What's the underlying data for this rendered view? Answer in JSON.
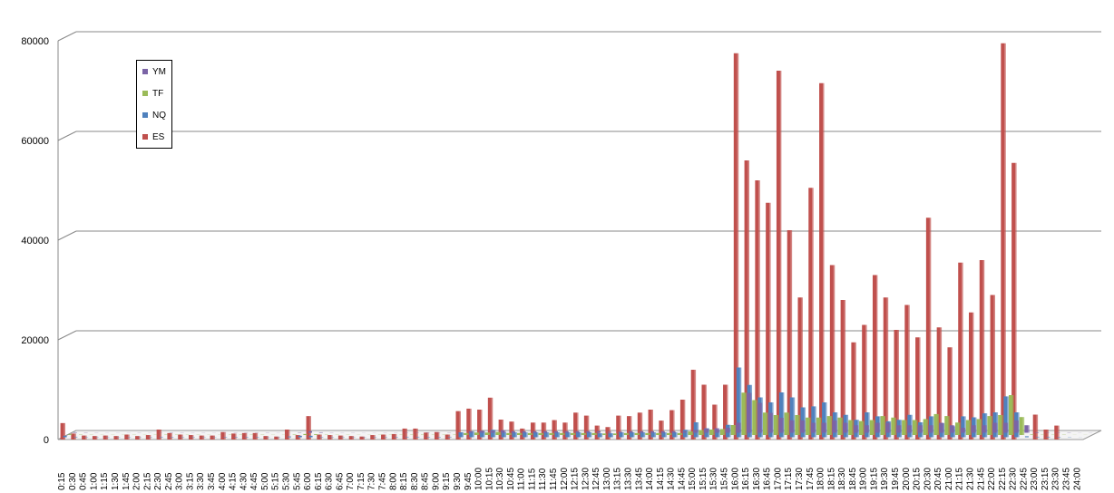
{
  "chart_data": {
    "type": "bar",
    "title": "",
    "xlabel": "",
    "ylabel": "",
    "ylim": [
      0,
      80000
    ],
    "yticks": [
      0,
      20000,
      40000,
      60000,
      80000
    ],
    "grid": true,
    "legend_placement": "top-left",
    "categories": [
      "0:15",
      "0:30",
      "0:45",
      "1:00",
      "1:15",
      "1:30",
      "1:45",
      "2:00",
      "2:15",
      "2:30",
      "2:45",
      "3:00",
      "3:15",
      "3:30",
      "3:45",
      "4:00",
      "4:15",
      "4:30",
      "4:45",
      "5:00",
      "5:15",
      "5:30",
      "5:45",
      "6:00",
      "6:15",
      "6:30",
      "6:45",
      "7:00",
      "7:15",
      "7:30",
      "7:45",
      "8:00",
      "8:15",
      "8:30",
      "8:45",
      "9:00",
      "9:15",
      "9:30",
      "9:45",
      "10:00",
      "10:15",
      "10:30",
      "10:45",
      "11:00",
      "11:15",
      "11:30",
      "11:45",
      "12:00",
      "12:15",
      "12:30",
      "12:45",
      "13:00",
      "13:15",
      "13:30",
      "13:45",
      "14:00",
      "14:15",
      "14:30",
      "14:45",
      "15:00",
      "15:15",
      "15:30",
      "15:45",
      "16:00",
      "16:15",
      "16:30",
      "16:45",
      "17:00",
      "17:15",
      "17:30",
      "17:45",
      "18:00",
      "18:15",
      "18:30",
      "18:45",
      "19:00",
      "19:15",
      "19:30",
      "19:45",
      "20:00",
      "20:15",
      "20:30",
      "20:45",
      "21:00",
      "21:15",
      "21:30",
      "21:45",
      "22:00",
      "22:15",
      "22:30",
      "22:45",
      "23:00",
      "23:15",
      "23:30",
      "23:45",
      "24:00"
    ],
    "series": [
      {
        "name": "YM",
        "color": "#7b64a6",
        "values": [
          100,
          50,
          30,
          20,
          20,
          20,
          30,
          20,
          30,
          50,
          40,
          30,
          30,
          20,
          20,
          40,
          40,
          40,
          40,
          20,
          20,
          60,
          300,
          100,
          40,
          30,
          30,
          20,
          20,
          30,
          30,
          40,
          50,
          50,
          40,
          40,
          50,
          300,
          400,
          400,
          500,
          300,
          300,
          300,
          300,
          300,
          300,
          300,
          300,
          300,
          200,
          200,
          300,
          300,
          300,
          300,
          300,
          300,
          600,
          800,
          900,
          1000,
          2000,
          8000,
          6000,
          4000,
          3000,
          2500,
          2500,
          2000,
          2000,
          2500,
          2000,
          1500,
          1500,
          2000,
          2000,
          1500,
          1500,
          1500,
          1500,
          2000,
          1500,
          1000,
          1500,
          1500,
          2000,
          2000,
          2500,
          1500,
          100,
          50,
          50,
          50,
          20,
          20
        ]
      },
      {
        "name": "TF",
        "color": "#9bbb59",
        "values": [
          150,
          60,
          40,
          30,
          30,
          30,
          40,
          30,
          40,
          60,
          50,
          40,
          40,
          30,
          30,
          50,
          50,
          50,
          50,
          30,
          30,
          80,
          200,
          150,
          50,
          40,
          40,
          30,
          30,
          40,
          40,
          50,
          60,
          60,
          50,
          50,
          60,
          400,
          500,
          500,
          600,
          400,
          400,
          400,
          400,
          400,
          400,
          400,
          400,
          400,
          300,
          300,
          400,
          400,
          400,
          400,
          400,
          400,
          700,
          1000,
          1100,
          1200,
          2000,
          8500,
          7000,
          4500,
          4000,
          4500,
          4000,
          3500,
          3500,
          3800,
          3500,
          3000,
          2800,
          3000,
          3800,
          3500,
          3000,
          3000,
          3200,
          4200,
          3800,
          2500,
          3000,
          3200,
          3800,
          4000,
          8000,
          3600,
          100,
          50,
          50,
          50,
          20,
          20
        ]
      },
      {
        "name": "NQ",
        "color": "#4f81bd",
        "values": [
          300,
          100,
          60,
          50,
          50,
          50,
          60,
          50,
          60,
          100,
          80,
          60,
          60,
          50,
          50,
          80,
          80,
          80,
          80,
          50,
          50,
          150,
          300,
          300,
          80,
          60,
          60,
          50,
          50,
          60,
          60,
          80,
          100,
          100,
          80,
          80,
          100,
          1000,
          1200,
          1200,
          1500,
          1000,
          1000,
          1000,
          1000,
          1000,
          1000,
          1000,
          1000,
          1000,
          800,
          800,
          1000,
          1000,
          1000,
          1000,
          1000,
          1000,
          1500,
          3000,
          1800,
          1500,
          2500,
          14000,
          10500,
          8000,
          7000,
          9000,
          8000,
          6000,
          6200,
          7000,
          5000,
          4500,
          3500,
          5000,
          4200,
          3200,
          3500,
          4500,
          3000,
          4200,
          2800,
          2200,
          4200,
          4000,
          4800,
          5000,
          8200,
          5000,
          200,
          100,
          100,
          80,
          50,
          20
        ]
      },
      {
        "name": "ES",
        "color": "#c0504d",
        "values": [
          3300,
          1200,
          800,
          700,
          800,
          700,
          1000,
          700,
          900,
          2000,
          1300,
          1000,
          900,
          800,
          800,
          1500,
          1200,
          1300,
          1300,
          700,
          600,
          2000,
          900,
          4700,
          1000,
          900,
          800,
          700,
          600,
          900,
          1000,
          1100,
          2200,
          2200,
          1400,
          1500,
          1000,
          5700,
          6200,
          6000,
          8400,
          4000,
          3600,
          2200,
          3400,
          3400,
          3900,
          3400,
          5400,
          4800,
          2800,
          2500,
          4800,
          4700,
          5400,
          6000,
          3800,
          5900,
          8000,
          14000,
          11000,
          7000,
          11000,
          77500,
          56000,
          52000,
          47500,
          74000,
          42000,
          28500,
          50500,
          71500,
          35000,
          28000,
          19500,
          23000,
          33000,
          28500,
          22000,
          27000,
          20500,
          44500,
          22500,
          18500,
          35500,
          25500,
          36000,
          29000,
          79500,
          55500,
          0,
          5000,
          2000,
          2800,
          0,
          0
        ]
      }
    ]
  }
}
